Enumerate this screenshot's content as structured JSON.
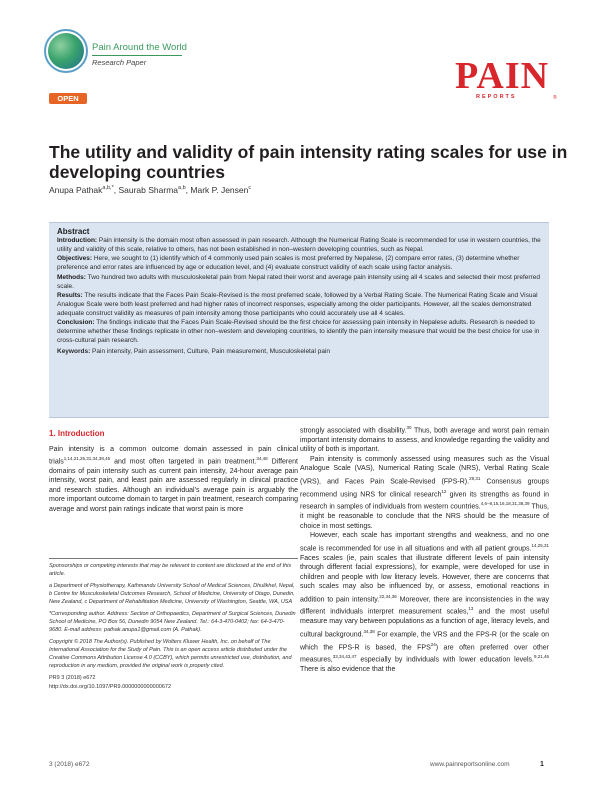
{
  "header": {
    "series": "Pain Around the World",
    "article_type": "Research Paper",
    "open_badge": "OPEN",
    "journal_brand": "PAIN",
    "journal_sub": "REPORTS",
    "journal_reg": "®"
  },
  "title": "The utility and validity of pain intensity rating scales for use in developing countries",
  "authors": [
    {
      "name": "Anupa Pathak",
      "sup": "a,b,*"
    },
    {
      "name": "Saurab Sharma",
      "sup": "a,b"
    },
    {
      "name": "Mark P. Jensen",
      "sup": "c"
    }
  ],
  "abstract": {
    "heading": "Abstract",
    "sections": [
      {
        "label": "Introduction:",
        "text": "Pain intensity is the domain most often assessed in pain research. Although the Numerical Rating Scale is recommended for use in western countries, the utility and validity of this scale, relative to others, has not been established in non–western developing countries, such as Nepal."
      },
      {
        "label": "Objectives:",
        "text": "Here, we sought to (1) identify which of 4 commonly used pain scales is most preferred by Nepalese, (2) compare error rates, (3) determine whether preference and error rates are influenced by age or education level, and (4) evaluate construct validity of each scale using factor analysis."
      },
      {
        "label": "Methods:",
        "text": "Two hundred two adults with musculoskeletal pain from Nepal rated their worst and average pain intensity using all 4 scales and selected their most preferred scale."
      },
      {
        "label": "Results:",
        "text": "The results indicate that the Faces Pain Scale-Revised is the most preferred scale, followed by a Verbal Rating Scale. The Numerical Rating Scale and Visual Analogue Scale were both least preferred and had higher rates of incorrect responses, especially among the older participants. However, all the scales demonstrated adequate construct validity as measures of pain intensity among those participants who could accurately use all 4 scales."
      },
      {
        "label": "Conclusion:",
        "text": "The findings indicate that the Faces Pain Scale-Revised should be the first choice for assessing pain intensity in Nepalese adults. Research is needed to determine whether these findings replicate in other non–western and developing countries, to identify the pain intensity measure that would be the best choice for use in cross-cultural pain research."
      }
    ],
    "keywords_label": "Keywords:",
    "keywords": "Pain intensity, Pain assessment, Culture, Pain measurement, Musculoskeletal pain"
  },
  "left_column": {
    "section_title": "1. Introduction",
    "p1": [
      {
        "t": "Pain intensity is a common outcome domain assessed in pain clinical trials"
      },
      {
        "s": "1,14,21,25,31,34,38,45"
      },
      {
        "t": " and most often targeted in pain treatment."
      },
      {
        "s": "34,48"
      },
      {
        "t": " Different domains of pain intensity such as current pain intensity, 24-hour average pain intensity, worst pain, and least pain are assessed regularly in clinical practice and research studies. Although an individual’s average pain is arguably the more important outcome domain to target in pain treatment, research comparing average and worst pain ratings indicate that worst pain is more"
      }
    ]
  },
  "footnotes": {
    "sponsorship": "Sponsorships or competing interests that may be relevant to content are disclosed at the end of this article.",
    "affiliations": "a Department of Physiotherapy, Kathmandu University School of Medical Sciences, Dhulikhel, Nepal, b Centre for Musculoskeletal Outcomes Research, School of Medicine, University of Otago, Dunedin, New Zealand, c Department of Rehabilitation Medicine, University of Washington, Seattle, WA, USA",
    "corresponding": "*Corresponding author. Address: Section of Orthopaedics, Department of Surgical Sciences, Dunedin School of Medicine, PO Box 56, Dunedin 9054 New Zealand. Tel.: 64-3-470-0402; fax: 64-3-470-9680. E-mail address: pathak.anupa1@gmail.com (A. Pathak).",
    "copyright": "Copyright © 2018 The Author(s). Published by Wolters Kluwer Health, Inc. on behalf of The International Association for the Study of Pain. This is an open access article distributed under the Creative Commons Attribution License 4.0 (CCBY), which permits unrestricted use, distribution, and reproduction in any medium, provided the original work is properly cited.",
    "pr9": "PR9 3 (2018) e672",
    "doi": "http://dx.doi.org/10.1097/PR9.0000000000000672"
  },
  "right_column": {
    "p1": [
      {
        "t": "strongly associated with disability."
      },
      {
        "s": "30"
      },
      {
        "t": " Thus, both average and worst pain remain important intensity domains to assess, and knowledge regarding the validity and utility of both is important."
      }
    ],
    "p2": [
      {
        "t": "Pain intensity is commonly assessed using measures such as the Visual Analogue Scale (VAS), Numerical Rating Scale (NRS), Verbal Rating Scale (VRS), and Faces Pain Scale-Revised (FPS-R)."
      },
      {
        "s": "29,31"
      },
      {
        "t": " Consensus groups recommend using NRS for clinical research"
      },
      {
        "s": "12"
      },
      {
        "t": " given its strengths as found in research in samples of individuals from western countries."
      },
      {
        "s": "4,6–8,15,16,18,31,38,39"
      },
      {
        "t": " Thus, it might be reasonable to conclude that the NRS should be the measure of choice in most settings."
      }
    ],
    "p3": [
      {
        "t": "However, each scale has important strengths and weakness, and no one scale is recommended for use in all situations and with all patient groups."
      },
      {
        "s": "14,25,31"
      },
      {
        "t": " Faces scales (ie, pain scales that illustrate different levels of pain intensity through different facial expressions), for example, were developed for use in children and people with low literacy levels. However, there are concerns that such scales may also be influenced by, or assess, emotional reactions in addition to pain intensity."
      },
      {
        "s": "22,34,36"
      },
      {
        "t": " Moreover, there are inconsistencies in the way different individuals interpret measurement scales,"
      },
      {
        "s": "13"
      },
      {
        "t": " and the most useful measure may vary between populations as a function of age, literacy levels, and cultural background."
      },
      {
        "s": "34,38"
      },
      {
        "t": " For example, the VRS and the FPS-R (or the scale on which the FPS-R is based, the FPS"
      },
      {
        "s": "24"
      },
      {
        "t": ") are often preferred over other measures,"
      },
      {
        "s": "33,34,43,47"
      },
      {
        "t": " especially by individuals with lower education levels."
      },
      {
        "s": "9,21,46"
      },
      {
        "t": " There is also evidence that the"
      }
    ]
  },
  "footer": {
    "left": "3 (2018) e672",
    "site": "www.painreportsonline.com",
    "page": "1"
  },
  "colors": {
    "accent_red": "#d8262c",
    "series_green": "#3a9a5c",
    "open_orange": "#e76524",
    "abstract_bg": "#dbe5f1"
  }
}
